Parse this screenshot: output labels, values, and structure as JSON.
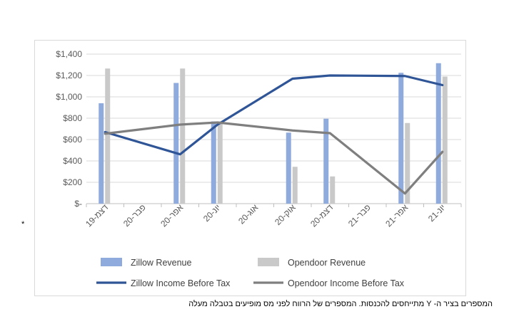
{
  "chart_data": {
    "type": "bar+line",
    "categories": [
      "דצמ-19",
      "פבר-20",
      "אפר-20",
      "יונ-20",
      "אוג-20",
      "אוק-20",
      "דצמ-20",
      "פבר-21",
      "אפר-21",
      "יונ-21"
    ],
    "yticks": [
      "$-",
      "$200",
      "$400",
      "$600",
      "$800",
      "$1,000",
      "$1,200",
      "$1,400"
    ],
    "ylim": [
      0,
      1400
    ],
    "grid": true,
    "legend_position": "bottom",
    "series": [
      {
        "name": "Zillow Revenue",
        "kind": "bar",
        "color": "#8faadc",
        "values": [
          940,
          null,
          1130,
          770,
          null,
          665,
          795,
          null,
          1225,
          1315
        ]
      },
      {
        "name": "Opendoor Revenue",
        "kind": "bar",
        "color": "#c9c9c9",
        "values": [
          1265,
          null,
          1265,
          770,
          null,
          345,
          255,
          null,
          755,
          1190
        ]
      },
      {
        "name": "Zillow Income Before Tax",
        "kind": "line",
        "color": "#2f5597",
        "values": [
          670,
          null,
          462,
          740,
          null,
          1170,
          1200,
          null,
          1195,
          1110
        ]
      },
      {
        "name": "Opendoor Income Before Tax",
        "kind": "line",
        "color": "#7f7f7f",
        "values": [
          655,
          null,
          740,
          760,
          null,
          685,
          660,
          null,
          95,
          485
        ]
      }
    ]
  },
  "side_mark": "*",
  "footnote": "המספרים בציר ה- Y מתייחסים להכנסות. המספרים של הרווח לפני מס מופיעים בטבלה מעלה"
}
